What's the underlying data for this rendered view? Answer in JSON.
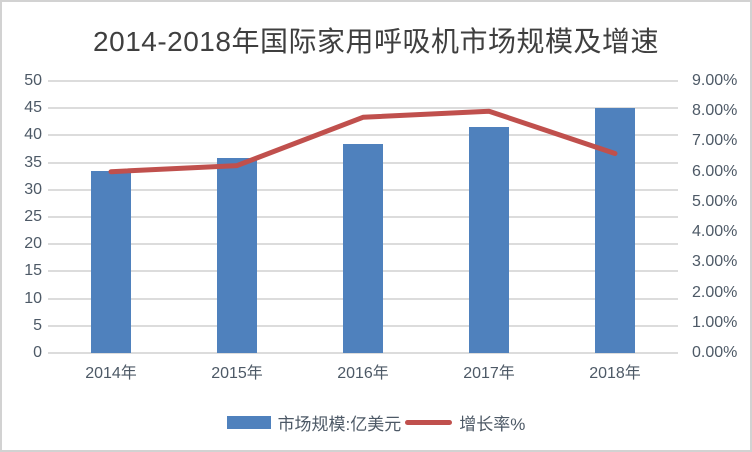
{
  "title": "2014-2018年国际家用呼吸机市场规模及增速",
  "chart_data": {
    "type": "combo",
    "title": "2014-2018年国际家用呼吸机市场规模及增速",
    "categories": [
      "2014年",
      "2015年",
      "2016年",
      "2017年",
      "2018年"
    ],
    "series": [
      {
        "name": "市场规模:亿美元",
        "type": "bar",
        "axis": "left",
        "color": "#4F81BD",
        "values": [
          33.5,
          35.8,
          38.5,
          41.5,
          45.0
        ]
      },
      {
        "name": "增长率%",
        "type": "line",
        "axis": "right",
        "color": "#C0504D",
        "values": [
          6.0,
          6.2,
          7.8,
          8.0,
          6.6
        ]
      }
    ],
    "left_axis": {
      "min": 0,
      "max": 50,
      "step": 5,
      "tick_labels": [
        "50",
        "45",
        "40",
        "35",
        "30",
        "25",
        "20",
        "15",
        "10",
        "5",
        "0"
      ]
    },
    "right_axis": {
      "min": 0,
      "max": 9,
      "step": 1,
      "tick_labels": [
        "9.00%",
        "8.00%",
        "7.00%",
        "6.00%",
        "5.00%",
        "4.00%",
        "3.00%",
        "2.00%",
        "1.00%",
        "0.00%"
      ]
    },
    "grid": true,
    "legend_position": "bottom",
    "xlabel": "",
    "ylabel": ""
  },
  "colors": {
    "bar": "#4F81BD",
    "line": "#C0504D",
    "gridline": "#DCDCDC",
    "axis_text": "#4D5966",
    "title_text": "#3F3F3F",
    "background": "#FFFFFF",
    "border": "#D2D2D2"
  }
}
